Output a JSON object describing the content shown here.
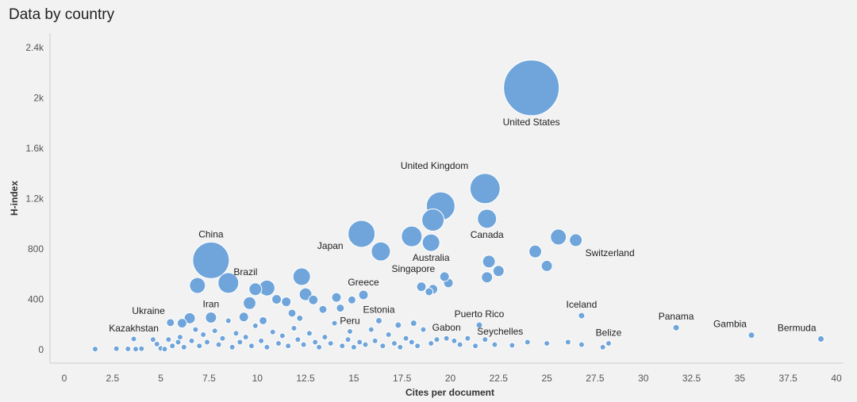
{
  "title": "Data by country",
  "chart_data": {
    "type": "scatter",
    "title": "Data by country",
    "xlabel": "Cites per document",
    "ylabel": "H-index",
    "xlim": [
      0,
      40
    ],
    "ylim": [
      0,
      2400
    ],
    "x_ticks": [
      {
        "value": 0,
        "label": "0"
      },
      {
        "value": 2.5,
        "label": "2.5"
      },
      {
        "value": 5,
        "label": "5"
      },
      {
        "value": 7.5,
        "label": "7.5"
      },
      {
        "value": 10,
        "label": "10"
      },
      {
        "value": 12.5,
        "label": "12.5"
      },
      {
        "value": 15,
        "label": "15"
      },
      {
        "value": 17.5,
        "label": "17.5"
      },
      {
        "value": 20,
        "label": "20"
      },
      {
        "value": 22.5,
        "label": "22.5"
      },
      {
        "value": 25,
        "label": "25"
      },
      {
        "value": 27.5,
        "label": "27.5"
      },
      {
        "value": 30,
        "label": "30"
      },
      {
        "value": 32.5,
        "label": "32.5"
      },
      {
        "value": 35,
        "label": "35"
      },
      {
        "value": 37.5,
        "label": "37.5"
      },
      {
        "value": 40,
        "label": "40"
      }
    ],
    "y_ticks": [
      {
        "value": 0,
        "label": "0"
      },
      {
        "value": 400,
        "label": "400"
      },
      {
        "value": 800,
        "label": "800"
      },
      {
        "value": 1200,
        "label": "1.2k"
      },
      {
        "value": 1600,
        "label": "1.6k"
      },
      {
        "value": 2000,
        "label": "2k"
      },
      {
        "value": 2400,
        "label": "2.4k"
      }
    ],
    "labeled_points": [
      {
        "name": "United States",
        "x": 24.2,
        "y": 2080,
        "r": 35,
        "label_pos": "below"
      },
      {
        "name": "United Kingdom",
        "x": 21.8,
        "y": 1280,
        "r": 19,
        "label_pos": "above-left"
      },
      {
        "name": "Canada",
        "x": 21.9,
        "y": 1040,
        "r": 12,
        "label_pos": "below"
      },
      {
        "name": "China",
        "x": 7.6,
        "y": 710,
        "r": 23,
        "label_pos": "above"
      },
      {
        "name": "Japan",
        "x": 15.4,
        "y": 920,
        "r": 17,
        "label_pos": "below-left"
      },
      {
        "name": "Australia",
        "x": 19.0,
        "y": 850,
        "r": 11,
        "label_pos": "below"
      },
      {
        "name": "Switzerland",
        "x": 26.5,
        "y": 870,
        "r": 8,
        "label_pos": "below-right"
      },
      {
        "name": "Brazil",
        "x": 10.5,
        "y": 490,
        "r": 10,
        "label_pos": "above-left"
      },
      {
        "name": "Greece",
        "x": 15.5,
        "y": 435,
        "r": 6,
        "label_pos": "above"
      },
      {
        "name": "Singapore",
        "x": 19.7,
        "y": 580,
        "r": 6,
        "label_pos": "left"
      },
      {
        "name": "Iran",
        "x": 7.6,
        "y": 255,
        "r": 7,
        "label_pos": "above"
      },
      {
        "name": "Ukraine",
        "x": 5.5,
        "y": 215,
        "r": 5,
        "label_pos": "above-left"
      },
      {
        "name": "Kazakhstan",
        "x": 3.6,
        "y": 85,
        "r": 3.5,
        "label_pos": "above"
      },
      {
        "name": "Peru",
        "x": 14.8,
        "y": 145,
        "r": 3.5,
        "label_pos": "above"
      },
      {
        "name": "Estonia",
        "x": 16.3,
        "y": 230,
        "r": 4,
        "label_pos": "above"
      },
      {
        "name": "Puerto Rico",
        "x": 21.5,
        "y": 195,
        "r": 4,
        "label_pos": "above"
      },
      {
        "name": "Gabon",
        "x": 19.8,
        "y": 90,
        "r": 3.5,
        "label_pos": "above"
      },
      {
        "name": "Seychelles",
        "x": 24.0,
        "y": 60,
        "r": 3.5,
        "label_pos": "above-left"
      },
      {
        "name": "Iceland",
        "x": 26.8,
        "y": 270,
        "r": 4,
        "label_pos": "above"
      },
      {
        "name": "Belize",
        "x": 28.2,
        "y": 50,
        "r": 3.5,
        "label_pos": "above"
      },
      {
        "name": "Panama",
        "x": 31.7,
        "y": 175,
        "r": 4,
        "label_pos": "above"
      },
      {
        "name": "Gambia",
        "x": 35.6,
        "y": 115,
        "r": 4,
        "label_pos": "above-left"
      },
      {
        "name": "Bermuda",
        "x": 39.2,
        "y": 85,
        "r": 4,
        "label_pos": "above-left"
      }
    ],
    "unlabeled_points": [
      {
        "x": 19.5,
        "y": 1140,
        "r": 18
      },
      {
        "x": 19.1,
        "y": 1030,
        "r": 14
      },
      {
        "x": 18.0,
        "y": 900,
        "r": 13
      },
      {
        "x": 16.4,
        "y": 780,
        "r": 12
      },
      {
        "x": 8.5,
        "y": 530,
        "r": 13
      },
      {
        "x": 6.9,
        "y": 510,
        "r": 10
      },
      {
        "x": 12.3,
        "y": 580,
        "r": 11
      },
      {
        "x": 9.9,
        "y": 480,
        "r": 8
      },
      {
        "x": 12.5,
        "y": 440,
        "r": 8
      },
      {
        "x": 9.6,
        "y": 370,
        "r": 8
      },
      {
        "x": 11.0,
        "y": 400,
        "r": 6
      },
      {
        "x": 11.5,
        "y": 380,
        "r": 6
      },
      {
        "x": 12.9,
        "y": 395,
        "r": 6
      },
      {
        "x": 14.1,
        "y": 415,
        "r": 6
      },
      {
        "x": 14.9,
        "y": 395,
        "r": 5
      },
      {
        "x": 22.0,
        "y": 700,
        "r": 8
      },
      {
        "x": 22.5,
        "y": 625,
        "r": 7
      },
      {
        "x": 21.9,
        "y": 575,
        "r": 7
      },
      {
        "x": 24.4,
        "y": 780,
        "r": 8
      },
      {
        "x": 25.6,
        "y": 895,
        "r": 10
      },
      {
        "x": 25.0,
        "y": 665,
        "r": 7
      },
      {
        "x": 18.5,
        "y": 500,
        "r": 6
      },
      {
        "x": 19.1,
        "y": 480,
        "r": 6
      },
      {
        "x": 19.9,
        "y": 530,
        "r": 6
      },
      {
        "x": 18.9,
        "y": 460,
        "r": 5
      },
      {
        "x": 13.4,
        "y": 320,
        "r": 5
      },
      {
        "x": 11.8,
        "y": 290,
        "r": 5
      },
      {
        "x": 10.3,
        "y": 230,
        "r": 5
      },
      {
        "x": 9.3,
        "y": 260,
        "r": 6
      },
      {
        "x": 6.5,
        "y": 250,
        "r": 7
      },
      {
        "x": 6.1,
        "y": 210,
        "r": 6
      },
      {
        "x": 14.3,
        "y": 330,
        "r": 5
      },
      {
        "x": 17.3,
        "y": 195,
        "r": 4
      },
      {
        "x": 18.1,
        "y": 210,
        "r": 4
      },
      {
        "x": 12.2,
        "y": 250,
        "r": 4
      },
      {
        "x": 1.6,
        "y": 5,
        "r": 3.5
      },
      {
        "x": 2.7,
        "y": 8,
        "r": 3.5
      },
      {
        "x": 3.3,
        "y": 6,
        "r": 3.5
      },
      {
        "x": 3.7,
        "y": 5,
        "r": 3.5
      },
      {
        "x": 4.0,
        "y": 8,
        "r": 3.5
      },
      {
        "x": 4.6,
        "y": 80,
        "r": 3.5
      },
      {
        "x": 4.8,
        "y": 45,
        "r": 3.5
      },
      {
        "x": 5.0,
        "y": 10,
        "r": 3.5
      },
      {
        "x": 5.2,
        "y": 5,
        "r": 3.5
      },
      {
        "x": 5.4,
        "y": 80,
        "r": 3.5
      },
      {
        "x": 5.6,
        "y": 30,
        "r": 3.5
      },
      {
        "x": 5.9,
        "y": 60,
        "r": 3.5
      },
      {
        "x": 6.0,
        "y": 100,
        "r": 3.5
      },
      {
        "x": 6.2,
        "y": 20,
        "r": 3.5
      },
      {
        "x": 6.6,
        "y": 70,
        "r": 3.5
      },
      {
        "x": 6.8,
        "y": 160,
        "r": 3.5
      },
      {
        "x": 7.0,
        "y": 30,
        "r": 3.5
      },
      {
        "x": 7.2,
        "y": 120,
        "r": 3.5
      },
      {
        "x": 7.4,
        "y": 60,
        "r": 3.5
      },
      {
        "x": 7.8,
        "y": 150,
        "r": 3.5
      },
      {
        "x": 8.0,
        "y": 40,
        "r": 3.5
      },
      {
        "x": 8.2,
        "y": 90,
        "r": 3.5
      },
      {
        "x": 8.5,
        "y": 230,
        "r": 3.5
      },
      {
        "x": 8.7,
        "y": 20,
        "r": 3.5
      },
      {
        "x": 8.9,
        "y": 130,
        "r": 3.5
      },
      {
        "x": 9.1,
        "y": 60,
        "r": 3.5
      },
      {
        "x": 9.4,
        "y": 100,
        "r": 3.5
      },
      {
        "x": 9.7,
        "y": 30,
        "r": 3.5
      },
      {
        "x": 9.9,
        "y": 190,
        "r": 3.5
      },
      {
        "x": 10.2,
        "y": 70,
        "r": 3.5
      },
      {
        "x": 10.5,
        "y": 20,
        "r": 3.5
      },
      {
        "x": 10.8,
        "y": 140,
        "r": 3.5
      },
      {
        "x": 11.1,
        "y": 50,
        "r": 3.5
      },
      {
        "x": 11.3,
        "y": 110,
        "r": 3.5
      },
      {
        "x": 11.6,
        "y": 30,
        "r": 3.5
      },
      {
        "x": 11.9,
        "y": 170,
        "r": 3.5
      },
      {
        "x": 12.1,
        "y": 80,
        "r": 3.5
      },
      {
        "x": 12.4,
        "y": 40,
        "r": 3.5
      },
      {
        "x": 12.7,
        "y": 130,
        "r": 3.5
      },
      {
        "x": 13.0,
        "y": 60,
        "r": 3.5
      },
      {
        "x": 13.2,
        "y": 20,
        "r": 3.5
      },
      {
        "x": 13.5,
        "y": 100,
        "r": 3.5
      },
      {
        "x": 13.8,
        "y": 50,
        "r": 3.5
      },
      {
        "x": 14.0,
        "y": 210,
        "r": 3.5
      },
      {
        "x": 14.4,
        "y": 30,
        "r": 3.5
      },
      {
        "x": 14.7,
        "y": 80,
        "r": 3.5
      },
      {
        "x": 15.0,
        "y": 20,
        "r": 3.5
      },
      {
        "x": 15.3,
        "y": 60,
        "r": 3.5
      },
      {
        "x": 15.6,
        "y": 40,
        "r": 3.5
      },
      {
        "x": 15.9,
        "y": 160,
        "r": 3.5
      },
      {
        "x": 16.1,
        "y": 70,
        "r": 3.5
      },
      {
        "x": 16.5,
        "y": 30,
        "r": 3.5
      },
      {
        "x": 16.8,
        "y": 120,
        "r": 3.5
      },
      {
        "x": 17.1,
        "y": 50,
        "r": 3.5
      },
      {
        "x": 17.4,
        "y": 20,
        "r": 3.5
      },
      {
        "x": 17.7,
        "y": 90,
        "r": 3.5
      },
      {
        "x": 18.0,
        "y": 60,
        "r": 3.5
      },
      {
        "x": 18.3,
        "y": 30,
        "r": 3.5
      },
      {
        "x": 18.6,
        "y": 160,
        "r": 3.5
      },
      {
        "x": 19.0,
        "y": 50,
        "r": 3.5
      },
      {
        "x": 19.3,
        "y": 80,
        "r": 3.5
      },
      {
        "x": 20.2,
        "y": 70,
        "r": 3.5
      },
      {
        "x": 20.5,
        "y": 40,
        "r": 3.5
      },
      {
        "x": 20.9,
        "y": 90,
        "r": 3.5
      },
      {
        "x": 21.3,
        "y": 30,
        "r": 3.5
      },
      {
        "x": 21.8,
        "y": 80,
        "r": 3.5
      },
      {
        "x": 22.3,
        "y": 40,
        "r": 3.5
      },
      {
        "x": 23.2,
        "y": 35,
        "r": 3.5
      },
      {
        "x": 25.0,
        "y": 50,
        "r": 3.5
      },
      {
        "x": 26.1,
        "y": 60,
        "r": 3.5
      },
      {
        "x": 26.8,
        "y": 40,
        "r": 3.5
      },
      {
        "x": 27.9,
        "y": 20,
        "r": 3.5
      }
    ]
  }
}
